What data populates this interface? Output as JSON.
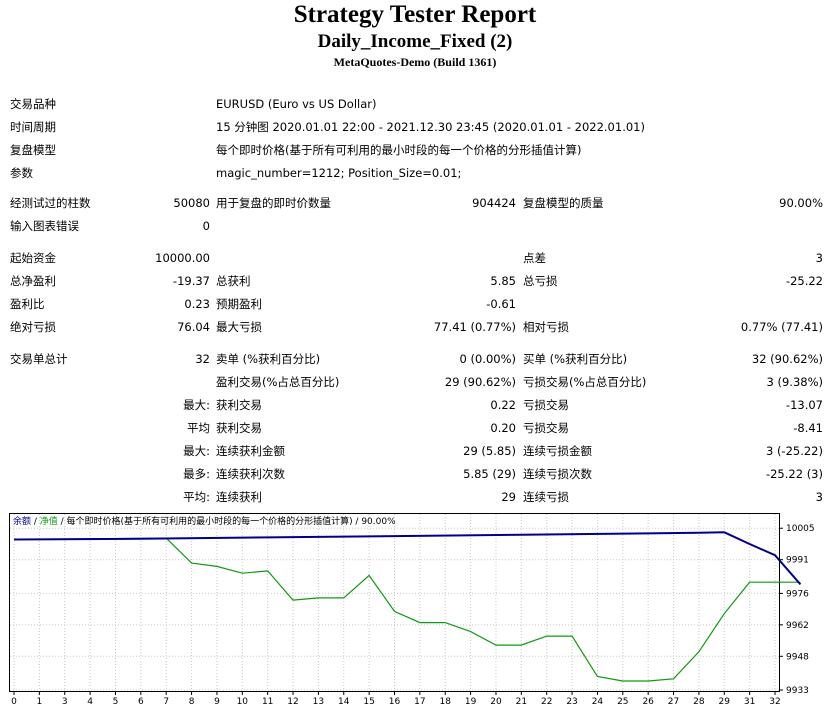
{
  "header": {
    "title": "Strategy Tester Report",
    "subtitle": "Daily_Income_Fixed (2)",
    "build": "MetaQuotes-Demo (Build 1361)"
  },
  "settings": {
    "symbol_label": "交易品种",
    "symbol_value": "EURUSD (Euro vs US Dollar)",
    "period_label": "时间周期",
    "period_value": "15 分钟图 2020.01.01 22:00 - 2021.12.30 23:45 (2020.01.01 - 2022.01.01)",
    "model_label": "复盘模型",
    "model_value": "每个即时价格(基于所有可利用的最小时段的每一个价格的分形插值计算)",
    "params_label": "参数",
    "params_value": "magic_number=1212; Position_Size=0.01;"
  },
  "stats": {
    "bars_label": "经测试过的柱数",
    "bars_value": "50080",
    "ticks_label": "用于复盘的即时价数量",
    "ticks_value": "904424",
    "quality_label": "复盘模型的质量",
    "quality_value": "90.00%",
    "errors_label": "输入图表错误",
    "errors_value": "0",
    "deposit_label": "起始资金",
    "deposit_value": "10000.00",
    "spread_label": "点差",
    "spread_value": "3",
    "net_label": "总净盈利",
    "net_value": "-19.37",
    "gross_profit_label": "总获利",
    "gross_profit_value": "5.85",
    "gross_loss_label": "总亏损",
    "gross_loss_value": "-25.22",
    "pf_label": "盈利比",
    "pf_value": "0.23",
    "expected_label": "预期盈利",
    "expected_value": "-0.61",
    "abs_dd_label": "绝对亏损",
    "abs_dd_value": "76.04",
    "max_dd_label": "最大亏损",
    "max_dd_value": "77.41 (0.77%)",
    "rel_dd_label": "相对亏损",
    "rel_dd_value": "0.77% (77.41)",
    "trades_label": "交易单总计",
    "trades_value": "32",
    "short_label": "卖单 (%获利百分比)",
    "short_value": "0 (0.00%)",
    "long_label": "买单 (%获利百分比)",
    "long_value": "32 (90.62%)",
    "profit_trades_label": "盈利交易(%占总百分比)",
    "profit_trades_value": "29 (90.62%)",
    "loss_trades_label": "亏损交易(%占总百分比)",
    "loss_trades_value": "3 (9.38%)",
    "largest_label": "最大:",
    "largest_profit_label": "获利交易",
    "largest_profit_value": "0.22",
    "largest_loss_label": "亏损交易",
    "largest_loss_value": "-13.07",
    "average_label": "平均",
    "average_profit_label": "获利交易",
    "average_profit_value": "0.20",
    "average_loss_label": "亏损交易",
    "average_loss_value": "-8.41",
    "max_label": "最大:",
    "max_consec_wins_label": "连续获利金额",
    "max_consec_wins_value": "29 (5.85)",
    "max_consec_losses_label": "连续亏损金额",
    "max_consec_losses_value": "3 (-25.22)",
    "maximal_label": "最多:",
    "maximal_consec_profit_label": "连续获利次数",
    "maximal_consec_profit_value": "5.85 (29)",
    "maximal_consec_loss_label": "连续亏损次数",
    "maximal_consec_loss_value": "-25.22 (3)",
    "avg_label": "平均:",
    "avg_consec_wins_label": "连续获利",
    "avg_consec_wins_value": "29",
    "avg_consec_losses_label": "连续亏损",
    "avg_consec_losses_value": "3"
  },
  "chart_data": {
    "type": "line",
    "legend_balance": "余额",
    "legend_sep1": " / ",
    "legend_equity": "净值",
    "legend_rest": " / 每个即时价格(基于所有可利用的最小时段的每一个价格的分形插值计算) / 90.00%",
    "x_ticks": [
      "0",
      "1",
      "3",
      "4",
      "5",
      "6",
      "7",
      "8",
      "9",
      "10",
      "11",
      "12",
      "13",
      "14",
      "15",
      "16",
      "17",
      "18",
      "19",
      "20",
      "21",
      "22",
      "23",
      "24",
      "25",
      "26",
      "27",
      "28",
      "29",
      "31",
      "32"
    ],
    "y_ticks": [
      10005,
      9991,
      9976,
      9962,
      9948,
      9933
    ],
    "ylim": [
      9933,
      10010
    ],
    "colors": {
      "balance": "#00008b",
      "equity": "#119911",
      "grid": "#c8c8c8"
    },
    "series": [
      {
        "name": "余额",
        "key": "balance",
        "points": [
          [
            0,
            10000.0
          ],
          [
            5,
            10000.3
          ],
          [
            10,
            10000.9
          ],
          [
            15,
            10001.5
          ],
          [
            20,
            10002.1
          ],
          [
            25,
            10002.7
          ],
          [
            27,
            10003.0
          ],
          [
            28,
            10003.2
          ],
          [
            29,
            9998
          ],
          [
            30,
            9993
          ],
          [
            31,
            9980
          ]
        ]
      },
      {
        "name": "净值",
        "key": "equity",
        "points": [
          [
            0,
            10000.0
          ],
          [
            5,
            10000.5
          ],
          [
            6,
            10000.6
          ],
          [
            7,
            9989.5
          ],
          [
            8,
            9988
          ],
          [
            9,
            9985
          ],
          [
            10,
            9986
          ],
          [
            11,
            9973
          ],
          [
            12,
            9974
          ],
          [
            13,
            9974
          ],
          [
            14,
            9984
          ],
          [
            15,
            9968
          ],
          [
            16,
            9963
          ],
          [
            17,
            9963
          ],
          [
            18,
            9959
          ],
          [
            19,
            9953
          ],
          [
            20,
            9953
          ],
          [
            21,
            9957
          ],
          [
            22,
            9957
          ],
          [
            23,
            9939
          ],
          [
            24,
            9937
          ],
          [
            25,
            9937
          ],
          [
            26,
            9938
          ],
          [
            27,
            9950
          ],
          [
            28,
            9967
          ],
          [
            29,
            9981
          ],
          [
            30,
            9981
          ],
          [
            31,
            9981
          ]
        ]
      }
    ]
  }
}
